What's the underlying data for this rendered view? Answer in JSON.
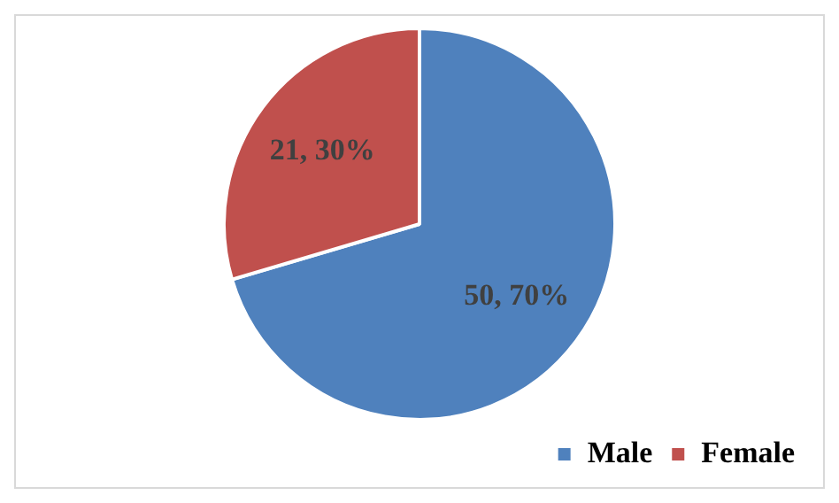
{
  "chart_data": {
    "type": "pie",
    "categories": [
      "Male",
      "Female"
    ],
    "values": [
      50,
      21
    ],
    "colors": [
      "#4f81bd",
      "#c0504d"
    ],
    "value_labels": [
      "50, 70%",
      "21, 30%"
    ],
    "legend": "bottom right"
  }
}
